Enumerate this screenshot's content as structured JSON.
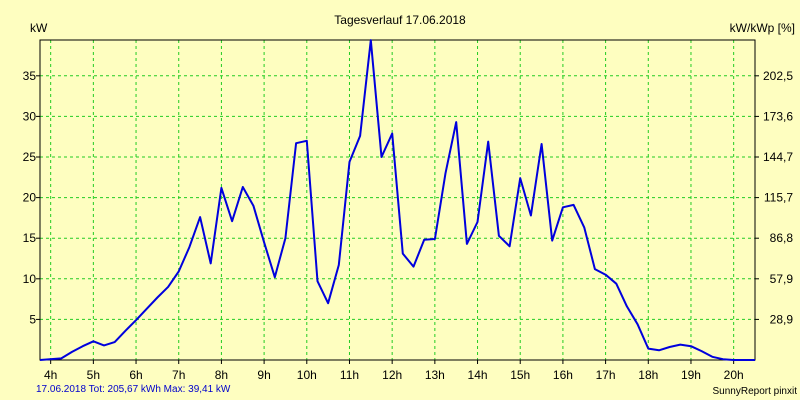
{
  "chart_data": {
    "type": "line",
    "title": "Tagesverlauf 17.06.2018",
    "ylabel": "kW",
    "y2label": "kW/kWp [%]",
    "x_tick_labels": [
      "4h",
      "5h",
      "6h",
      "7h",
      "8h",
      "9h",
      "10h",
      "11h",
      "12h",
      "13h",
      "14h",
      "15h",
      "16h",
      "17h",
      "18h",
      "19h",
      "20h"
    ],
    "x_ticks": [
      4,
      5,
      6,
      7,
      8,
      9,
      10,
      11,
      12,
      13,
      14,
      15,
      16,
      17,
      18,
      19,
      20
    ],
    "xlim": [
      3.75,
      20.5
    ],
    "ylim": [
      0,
      39.41
    ],
    "y_ticks": [
      5,
      10,
      15,
      20,
      25,
      30,
      35
    ],
    "y_tick_labels": [
      "5",
      "10",
      "15",
      "20",
      "25",
      "30",
      "35"
    ],
    "y2_ticks": [
      5,
      10,
      15,
      20,
      25,
      30,
      35
    ],
    "y2_tick_labels": [
      "28,9",
      "57,9",
      "86,8",
      "115,7",
      "144,7",
      "173,6",
      "202,5"
    ],
    "grid": true,
    "series": [
      {
        "color": "#0000dd",
        "x": [
          3.75,
          4.25,
          4.5,
          4.75,
          5.0,
          5.25,
          5.5,
          5.75,
          6.0,
          6.25,
          6.5,
          6.75,
          7.0,
          7.25,
          7.5,
          7.75,
          8.0,
          8.25,
          8.5,
          8.75,
          9.0,
          9.25,
          9.5,
          9.75,
          10.0,
          10.25,
          10.5,
          10.75,
          11.0,
          11.25,
          11.5,
          11.75,
          12.0,
          12.25,
          12.5,
          12.75,
          13.0,
          13.25,
          13.5,
          13.75,
          14.0,
          14.25,
          14.5,
          14.75,
          15.0,
          15.25,
          15.5,
          15.75,
          16.0,
          16.25,
          16.5,
          16.75,
          17.0,
          17.25,
          17.5,
          17.75,
          18.0,
          18.25,
          18.5,
          18.75,
          19.0,
          19.25,
          19.5,
          19.75,
          20.0,
          20.5
        ],
        "values": [
          0,
          0.2,
          1.0,
          1.7,
          2.3,
          1.8,
          2.2,
          3.6,
          4.9,
          6.3,
          7.7,
          9.0,
          10.9,
          13.9,
          17.6,
          11.9,
          21.2,
          17.1,
          21.3,
          19.0,
          14.5,
          10.2,
          15.0,
          26.7,
          27.0,
          9.7,
          7.0,
          11.7,
          24.4,
          27.6,
          39.4,
          25.0,
          27.9,
          13.1,
          11.5,
          14.8,
          14.9,
          23.0,
          29.3,
          14.3,
          17.0,
          26.9,
          15.3,
          14.0,
          22.4,
          17.8,
          26.6,
          14.7,
          18.8,
          19.1,
          16.3,
          11.2,
          10.5,
          9.4,
          6.6,
          4.4,
          1.4,
          1.2,
          1.6,
          1.9,
          1.7,
          1.1,
          0.4,
          0.1,
          0,
          0
        ]
      }
    ]
  },
  "footer": {
    "left": "17.06.2018 Tot: 205,67 kWh Max: 39,41 kW",
    "right": "SunnyReport pinxit"
  }
}
